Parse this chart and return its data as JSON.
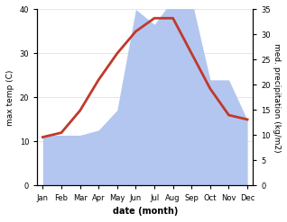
{
  "months": [
    "Jan",
    "Feb",
    "Mar",
    "Apr",
    "May",
    "Jun",
    "Jul",
    "Aug",
    "Sep",
    "Oct",
    "Nov",
    "Dec"
  ],
  "temperature": [
    11,
    12,
    17,
    24,
    30,
    35,
    38,
    38,
    30,
    22,
    16,
    15
  ],
  "precipitation": [
    10,
    10,
    10,
    11,
    15,
    35,
    32,
    37,
    37,
    21,
    21,
    13
  ],
  "temp_color": "#c0392b",
  "precip_color": "#b3c6f0",
  "xlabel": "date (month)",
  "ylabel_left": "max temp (C)",
  "ylabel_right": "med. precipitation (kg/m2)",
  "ylim_left": [
    0,
    40
  ],
  "ylim_right": [
    0,
    35
  ],
  "yticks_left": [
    0,
    10,
    20,
    30,
    40
  ],
  "yticks_right": [
    0,
    5,
    10,
    15,
    20,
    25,
    30,
    35
  ],
  "bg_color": "#ffffff",
  "line_width": 2.0,
  "tick_fontsize": 6,
  "label_fontsize": 6.5,
  "xlabel_fontsize": 7
}
